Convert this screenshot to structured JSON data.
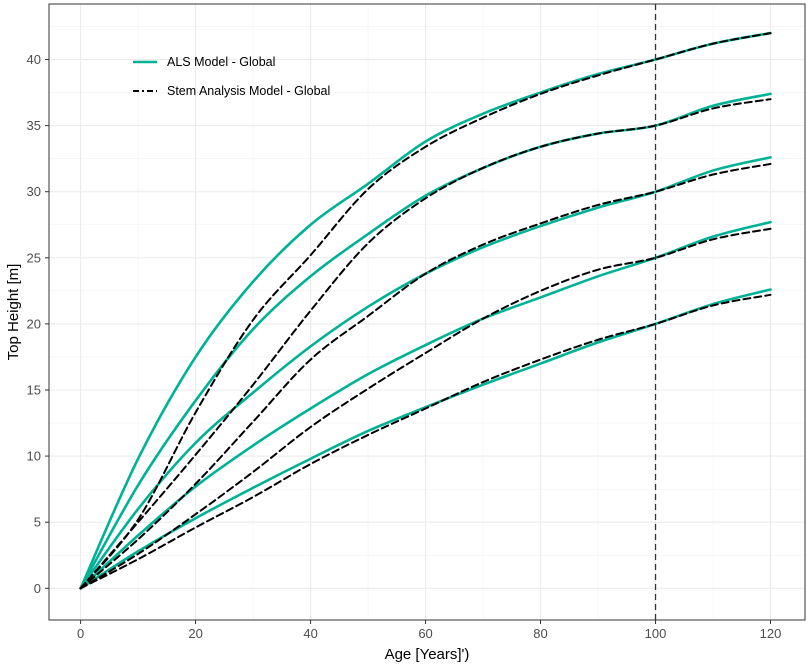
{
  "chart_data": {
    "type": "line",
    "xlabel": "Age [Years]')",
    "ylabel": "Top Height [m]",
    "xlim": [
      -5.5,
      126
    ],
    "ylim": [
      -2.4,
      44.2
    ],
    "x_ticks": [
      0,
      20,
      40,
      60,
      80,
      100,
      120
    ],
    "y_ticks": [
      0,
      5,
      10,
      15,
      20,
      25,
      30,
      35,
      40
    ],
    "grid": true,
    "legend_position": "top-left",
    "reference_line": {
      "x": 100,
      "style": "dashed",
      "color": "#333333"
    },
    "legend": [
      {
        "label": "ALS Model - Global",
        "color": "#00b295",
        "style": "solid"
      },
      {
        "label": "Stem Analysis Model - Global",
        "color": "#000000",
        "style": "dashed"
      }
    ],
    "x": [
      0,
      10,
      20,
      30,
      40,
      50,
      60,
      70,
      80,
      90,
      100,
      110,
      120
    ],
    "series": [
      {
        "group": "ALS Model - Global",
        "values": [
          0,
          9.8,
          17.5,
          23.2,
          27.5,
          30.6,
          33.8,
          35.9,
          37.5,
          38.9,
          40.0,
          41.2,
          42.0
        ]
      },
      {
        "group": "ALS Model - Global",
        "values": [
          0,
          7.8,
          14.2,
          19.6,
          23.6,
          26.8,
          29.7,
          31.8,
          33.4,
          34.4,
          35.0,
          36.5,
          37.4
        ]
      },
      {
        "group": "ALS Model - Global",
        "values": [
          0,
          6.0,
          11.0,
          14.8,
          18.3,
          21.3,
          23.8,
          25.8,
          27.4,
          28.8,
          30.0,
          31.6,
          32.6
        ]
      },
      {
        "group": "ALS Model - Global",
        "values": [
          0,
          4.0,
          7.7,
          10.8,
          13.6,
          16.2,
          18.4,
          20.4,
          22.0,
          23.6,
          25.0,
          26.6,
          27.7
        ]
      },
      {
        "group": "ALS Model - Global",
        "values": [
          0,
          2.8,
          5.3,
          7.6,
          9.8,
          11.9,
          13.7,
          15.4,
          17.0,
          18.6,
          20.0,
          21.5,
          22.6
        ]
      },
      {
        "group": "Stem Analysis Model - Global",
        "values": [
          0,
          5.2,
          13.3,
          20.3,
          25.2,
          30.2,
          33.4,
          35.6,
          37.4,
          38.8,
          40.0,
          41.2,
          42.0
        ]
      },
      {
        "group": "Stem Analysis Model - Global",
        "values": [
          0,
          5.0,
          10.1,
          15.4,
          21.0,
          26.1,
          29.5,
          31.8,
          33.4,
          34.4,
          35.0,
          36.3,
          37.0
        ]
      },
      {
        "group": "Stem Analysis Model - Global",
        "values": [
          0,
          3.7,
          7.9,
          12.6,
          17.3,
          20.6,
          23.8,
          26.0,
          27.6,
          29.0,
          30.0,
          31.3,
          32.1
        ]
      },
      {
        "group": "Stem Analysis Model - Global",
        "values": [
          0,
          2.6,
          5.6,
          8.8,
          12.2,
          15.1,
          17.8,
          20.4,
          22.5,
          24.1,
          25.0,
          26.4,
          27.2
        ]
      },
      {
        "group": "Stem Analysis Model - Global",
        "values": [
          0,
          2.2,
          4.6,
          6.9,
          9.4,
          11.6,
          13.6,
          15.6,
          17.3,
          18.8,
          20.0,
          21.4,
          22.2
        ]
      }
    ]
  }
}
